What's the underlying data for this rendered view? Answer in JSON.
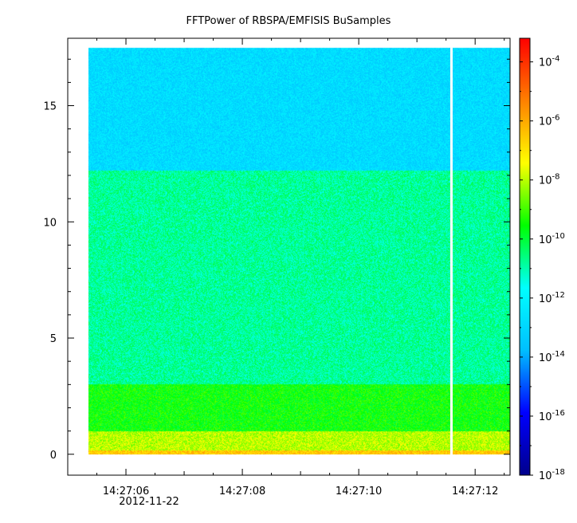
{
  "chart_data": {
    "type": "heatmap",
    "title": "FFTPower of RBSPA/EMFISIS  BuSamples",
    "xlabel": "",
    "ylabel": "",
    "x_ticks": [
      "14:27:06",
      "14:27:08",
      "14:27:10",
      "14:27:12"
    ],
    "x_tick_values": [
      6,
      8,
      10,
      12
    ],
    "x_date_label": "2012-11-22",
    "xlim": [
      5.0,
      12.6
    ],
    "data_x_range": [
      5.35,
      12.6
    ],
    "gap_x": 11.6,
    "ylim": [
      -0.9,
      17.9
    ],
    "y_ticks": [
      "0",
      "5",
      "10",
      "15"
    ],
    "y_tick_values": [
      0,
      5,
      10,
      15
    ],
    "data_y_range": [
      0,
      17.5
    ],
    "colorbar": {
      "scale": "log",
      "range_exponent": [
        -18,
        -3.2
      ],
      "tick_exponents": [
        -4,
        -6,
        -8,
        -10,
        -12,
        -14,
        -16,
        -18
      ],
      "tick_base": "10",
      "colors": [
        "#00008b",
        "#0000ff",
        "#00bfff",
        "#00ffff",
        "#00ff00",
        "#ffff00",
        "#ff8000",
        "#ff0000"
      ]
    },
    "bands": [
      {
        "y_range": [
          0,
          0.15
        ],
        "log_power": -6.5
      },
      {
        "y_range": [
          0.15,
          1
        ],
        "log_power": -8
      },
      {
        "y_range": [
          1,
          3
        ],
        "log_power": -9.5
      },
      {
        "y_range": [
          3,
          12.2
        ],
        "log_power": -10.8
      },
      {
        "y_range": [
          12.2,
          17.5
        ],
        "log_power": -12.8
      }
    ]
  }
}
